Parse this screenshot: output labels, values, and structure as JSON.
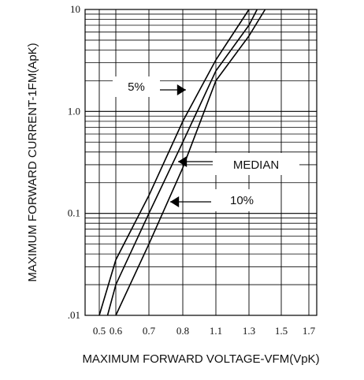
{
  "chart_data": {
    "type": "line",
    "title": "",
    "xlabel": "MAXIMUM FORWARD VOLTAGE-VFM(VpK)",
    "ylabel": "MAXIMUM FORWARD CURRENT-1FM(ApK)",
    "x_tick_labels": [
      "0.5",
      "0.6",
      "0.7",
      "0.8",
      "1.1",
      "1.3",
      "1.5",
      "1.7"
    ],
    "y_tick_labels": [
      "10",
      "1.0",
      "0.1",
      ".01"
    ],
    "yscale": "log",
    "ylim": [
      0.01,
      10
    ],
    "grid": true,
    "series": [
      {
        "name": "5%",
        "points": [
          {
            "x": 0.5,
            "y": 0.01
          },
          {
            "x": 0.6,
            "y": 0.035
          },
          {
            "x": 0.7,
            "y": 0.15
          },
          {
            "x": 0.8,
            "y": 0.8
          },
          {
            "x": 1.1,
            "y": 3.2
          },
          {
            "x": 1.3,
            "y": 10
          }
        ]
      },
      {
        "name": "MEDIAN",
        "points": [
          {
            "x": 0.55,
            "y": 0.01
          },
          {
            "x": 0.6,
            "y": 0.02
          },
          {
            "x": 0.7,
            "y": 0.1
          },
          {
            "x": 0.8,
            "y": 0.5
          },
          {
            "x": 1.1,
            "y": 2.5
          },
          {
            "x": 1.3,
            "y": 7
          },
          {
            "x": 1.35,
            "y": 10
          }
        ]
      },
      {
        "name": "10%",
        "points": [
          {
            "x": 0.6,
            "y": 0.01
          },
          {
            "x": 0.7,
            "y": 0.05
          },
          {
            "x": 0.8,
            "y": 0.28
          },
          {
            "x": 1.1,
            "y": 2.0
          },
          {
            "x": 1.3,
            "y": 5.5
          },
          {
            "x": 1.4,
            "y": 10
          }
        ]
      }
    ],
    "annotations": [
      {
        "text": "5%",
        "series": "5%"
      },
      {
        "text": "MEDIAN",
        "series": "MEDIAN"
      },
      {
        "text": "10%",
        "series": "10%"
      }
    ]
  }
}
